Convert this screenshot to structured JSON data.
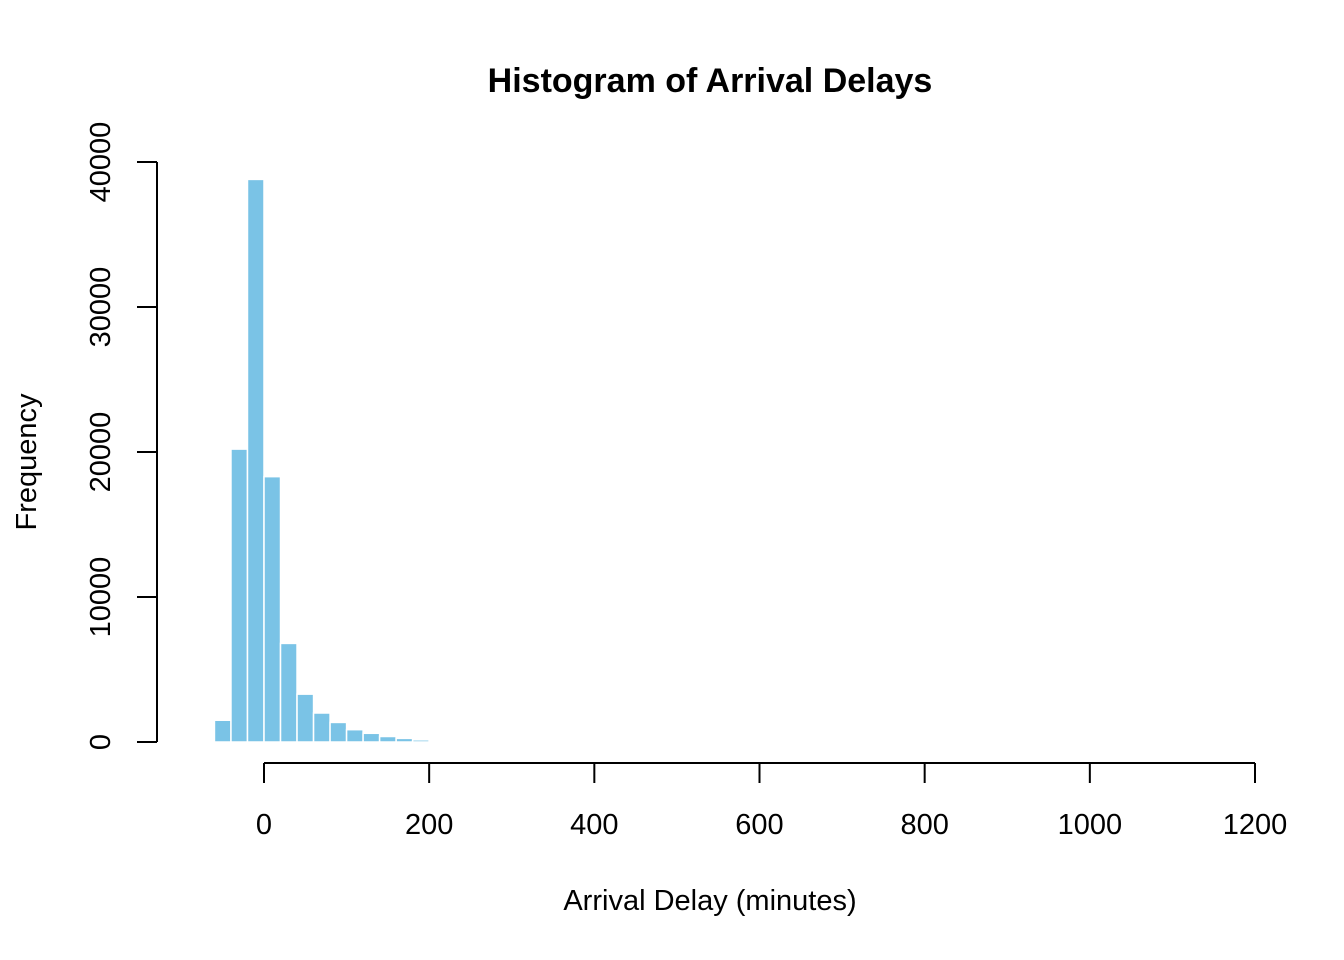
{
  "chart_data": {
    "type": "bar",
    "title": "Histogram of Arrival Delays",
    "xlabel": "Arrival Delay (minutes)",
    "ylabel": "Frequency",
    "xlim": [
      0,
      1200
    ],
    "ylim": [
      0,
      40000
    ],
    "x_ticks": [
      0,
      200,
      400,
      600,
      800,
      1000,
      1200
    ],
    "y_ticks": [
      0,
      10000,
      20000,
      30000,
      40000
    ],
    "bin_width": 20,
    "bins": [
      {
        "start": -60,
        "end": -40,
        "count": 1500
      },
      {
        "start": -40,
        "end": -20,
        "count": 20200
      },
      {
        "start": -20,
        "end": 0,
        "count": 38800
      },
      {
        "start": 0,
        "end": 20,
        "count": 18300
      },
      {
        "start": 20,
        "end": 40,
        "count": 6800
      },
      {
        "start": 40,
        "end": 60,
        "count": 3300
      },
      {
        "start": 60,
        "end": 80,
        "count": 2000
      },
      {
        "start": 80,
        "end": 100,
        "count": 1350
      },
      {
        "start": 100,
        "end": 120,
        "count": 850
      },
      {
        "start": 120,
        "end": 140,
        "count": 600
      },
      {
        "start": 140,
        "end": 160,
        "count": 380
      },
      {
        "start": 160,
        "end": 180,
        "count": 250
      },
      {
        "start": 180,
        "end": 200,
        "count": 150
      },
      {
        "start": 200,
        "end": 220,
        "count": 90
      },
      {
        "start": 220,
        "end": 240,
        "count": 50
      }
    ],
    "grid": false,
    "colors": {
      "bar_fill": "#7ac3e6",
      "bar_border": "#ffffff"
    }
  }
}
